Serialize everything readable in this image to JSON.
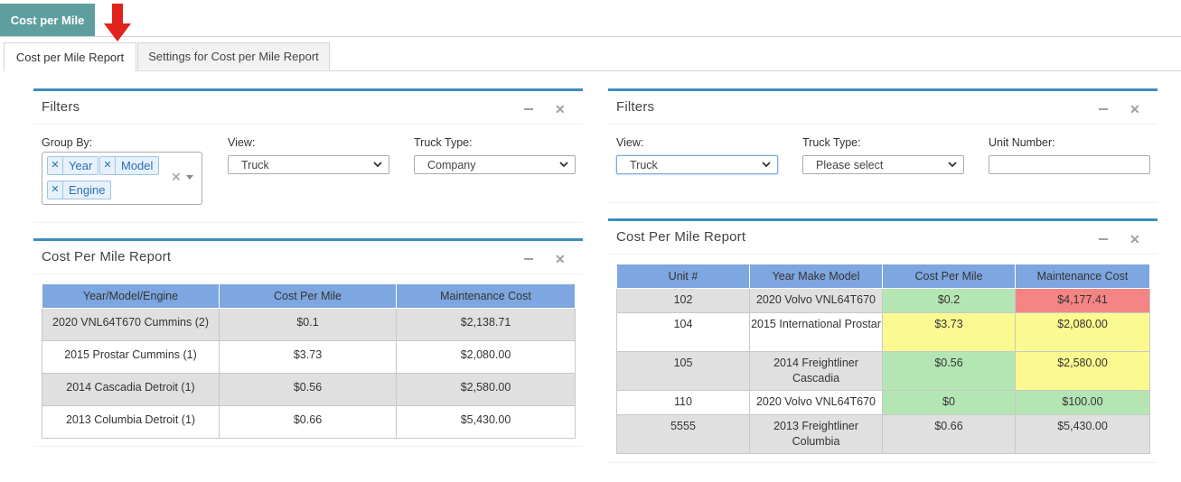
{
  "top_tab": {
    "label": "Cost per Mile"
  },
  "sub_tabs": [
    {
      "label": "Cost per Mile Report"
    },
    {
      "label": "Settings for Cost per Mile Report"
    }
  ],
  "left_filters": {
    "title": "Filters",
    "group_by_label": "Group By:",
    "group_by_chips": [
      "Year",
      "Model",
      "Engine"
    ],
    "view_label": "View:",
    "view_value": "Truck",
    "truck_type_label": "Truck Type:",
    "truck_type_value": "Company"
  },
  "left_report": {
    "title": "Cost Per Mile Report",
    "columns": [
      "Year/Model/Engine",
      "Cost Per Mile",
      "Maintenance Cost"
    ],
    "rows": [
      [
        "2020 VNL64T670 Cummins (2)",
        "$0.1",
        "$2,138.71"
      ],
      [
        "2015 Prostar Cummins (1)",
        "$3.73",
        "$2,080.00"
      ],
      [
        "2014 Cascadia Detroit (1)",
        "$0.56",
        "$2,580.00"
      ],
      [
        "2013 Columbia Detroit (1)",
        "$0.66",
        "$5,430.00"
      ]
    ]
  },
  "right_filters": {
    "title": "Filters",
    "view_label": "View:",
    "view_value": "Truck",
    "truck_type_label": "Truck Type:",
    "truck_type_value": "Please select",
    "unit_number_label": "Unit Number:",
    "unit_number_value": ""
  },
  "right_report": {
    "title": "Cost Per Mile Report",
    "columns": [
      "Unit #",
      "Year Make Model",
      "Cost Per Mile",
      "Maintenance Cost"
    ],
    "rows": [
      [
        "102",
        "2020 Volvo VNL64T670",
        "$0.2",
        "$4,177.41"
      ],
      [
        "104",
        "2015 International Prostar",
        "$3.73",
        "$2,080.00"
      ],
      [
        "105",
        "2014 Freightliner Cascadia",
        "$0.56",
        "$2,580.00"
      ],
      [
        "110",
        "2020 Volvo VNL64T670",
        "$0",
        "$100.00"
      ],
      [
        "5555",
        "2013 Freightliner Columbia",
        "$0.66",
        "$5,430.00"
      ]
    ]
  },
  "colors": {
    "tab_teal": "#5e9ea0",
    "panel_border": "#3c8dbc",
    "table_header": "#7ea6e0",
    "good": "#b4e6b4",
    "warn": "#fafa90",
    "bad": "#f58484"
  },
  "icons": [
    "red-arrow-down-icon",
    "minimize-icon",
    "close-icon",
    "chevron-down-icon",
    "remove-chip-icon"
  ]
}
